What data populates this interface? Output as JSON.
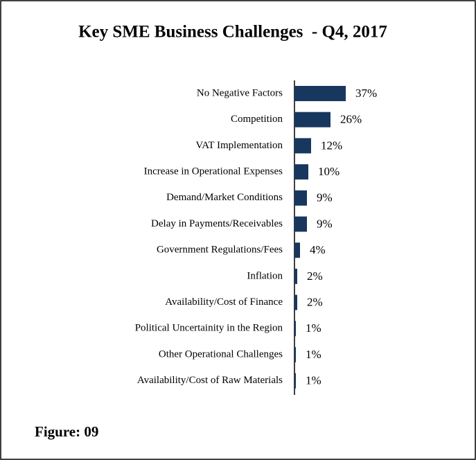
{
  "chart_data": {
    "type": "bar",
    "orientation": "horizontal",
    "title": "Key SME Business Challenges  - Q4, 2017",
    "categories": [
      "No Negative Factors",
      "Competition",
      "VAT Implementation",
      "Increase in Operational Expenses",
      "Demand/Market Conditions",
      "Delay in Payments/Receivables",
      "Government Regulations/Fees",
      "Inflation",
      "Availability/Cost of Finance",
      "Political Uncertainity in the Region",
      "Other Operational Challenges",
      "Availability/Cost of Raw Materials"
    ],
    "values": [
      37,
      26,
      12,
      10,
      9,
      9,
      4,
      2,
      2,
      1,
      1,
      1
    ],
    "value_labels": [
      "37%",
      "26%",
      "12%",
      "10%",
      "9%",
      "9%",
      "4%",
      "2%",
      "2%",
      "1%",
      "1%",
      "1%"
    ],
    "color": "#17375e",
    "caption": "Figure: 09"
  }
}
